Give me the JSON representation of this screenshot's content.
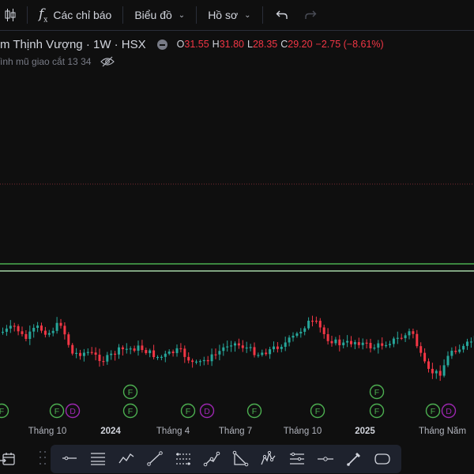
{
  "toolbar": {
    "indicators_label": "Các chỉ báo",
    "chart_label": "Biểu đồ",
    "profile_label": "Hồ sơ"
  },
  "legend": {
    "symbol": "m Thịnh Vượng · 1W · HSX",
    "o_key": "O",
    "o_val": "31.55",
    "h_key": "H",
    "h_val": "31.80",
    "l_key": "L",
    "l_val": "28.35",
    "c_key": "C",
    "c_val": "29.20",
    "change": "−2.75 (−8.61%)",
    "indicator": "ình mũ giao cắt 13 34"
  },
  "colors": {
    "up": "#26a69a",
    "down": "#f23645",
    "ema_green": "#4caf50",
    "ema_light": "#a5d6a7",
    "marker_f": "#4caf50",
    "marker_d": "#9c27b0",
    "background": "#0f0f0f"
  },
  "axis": {
    "labels": [
      "Tháng 10",
      "2024",
      "Tháng 4",
      "Tháng 7",
      "Tháng 10",
      "2025",
      "Tháng Năm"
    ]
  },
  "markers": {
    "f": "F",
    "d": "D"
  },
  "icons": {
    "candles": "candlestick-icon",
    "indicators": "function-fx-icon",
    "undo": "undo-icon",
    "redo": "redo-icon",
    "hide": "eye-crossed-icon",
    "calendar": "calendar-range-icon"
  },
  "drawing_tools": [
    "horizontal-line-icon",
    "multi-line-icon",
    "zigzag-icon",
    "trend-line-icon",
    "channel-icon",
    "path-icon",
    "triangle-pattern-icon",
    "elliott-wave-icon",
    "long-position-icon",
    "price-marker-icon",
    "brush-icon",
    "rounded-shape-icon"
  ]
}
